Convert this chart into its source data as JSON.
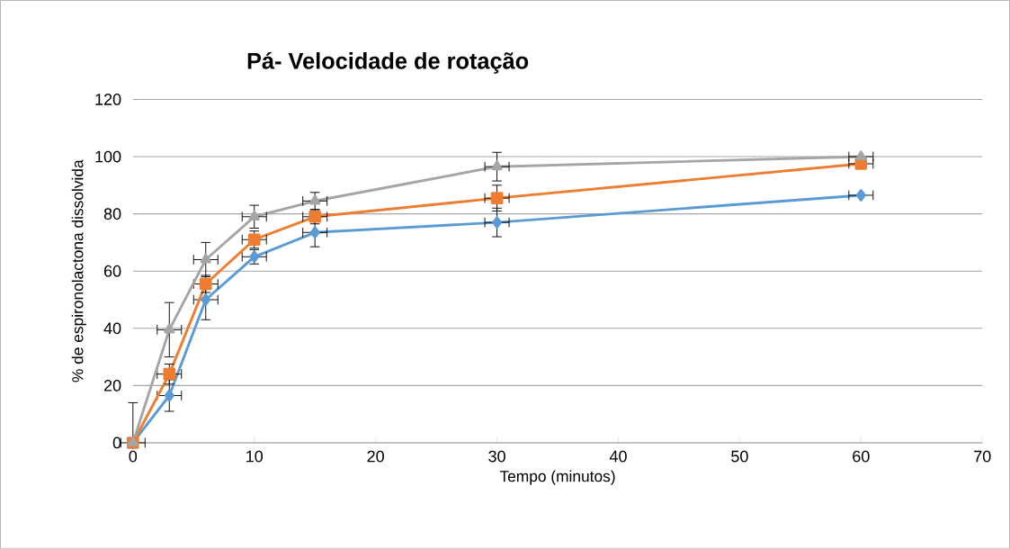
{
  "chart_data": {
    "type": "line",
    "title": "Pá- Velocidade de rotação",
    "xlabel": "Tempo (minutos)",
    "ylabel": "% de espironolactona dissolvida",
    "xlim": [
      0,
      70
    ],
    "xticks": [
      0,
      10,
      20,
      30,
      40,
      50,
      60,
      70
    ],
    "ylim": [
      0,
      120
    ],
    "yticks": [
      0,
      20,
      40,
      60,
      80,
      100,
      120
    ],
    "grid": "y",
    "line_style": "solid",
    "series": [
      {
        "color": "#5b9bd5",
        "marker": "diamond",
        "x": [
          0,
          3,
          6,
          10,
          15,
          30,
          60
        ],
        "values": [
          0,
          16.5,
          50,
          65,
          73.5,
          77,
          86.5
        ],
        "errors": [
          null,
          5.5,
          7,
          2.5,
          5,
          5,
          null
        ],
        "xerrors": [
          null,
          1,
          1,
          1,
          1,
          1,
          1
        ]
      },
      {
        "color": "#ed7d31",
        "marker": "square",
        "x": [
          0,
          3,
          6,
          10,
          15,
          30,
          60
        ],
        "values": [
          0,
          24,
          55.5,
          71,
          79,
          85.5,
          97.5
        ],
        "errors": [
          null,
          3.5,
          3,
          3,
          2.5,
          4.5,
          null
        ],
        "xerrors": [
          null,
          1,
          1,
          1,
          1,
          1,
          1
        ]
      },
      {
        "color": "#a5a5a5",
        "marker": "triangle",
        "x": [
          0,
          3,
          6,
          10,
          15,
          30,
          60
        ],
        "values": [
          0,
          39.5,
          64,
          79,
          84.5,
          96.5,
          100
        ],
        "errors": [
          [
            0,
            14
          ],
          9.5,
          6,
          4,
          3,
          5,
          null
        ],
        "xerrors": [
          1,
          1,
          1,
          1,
          1,
          1,
          1
        ]
      }
    ]
  }
}
